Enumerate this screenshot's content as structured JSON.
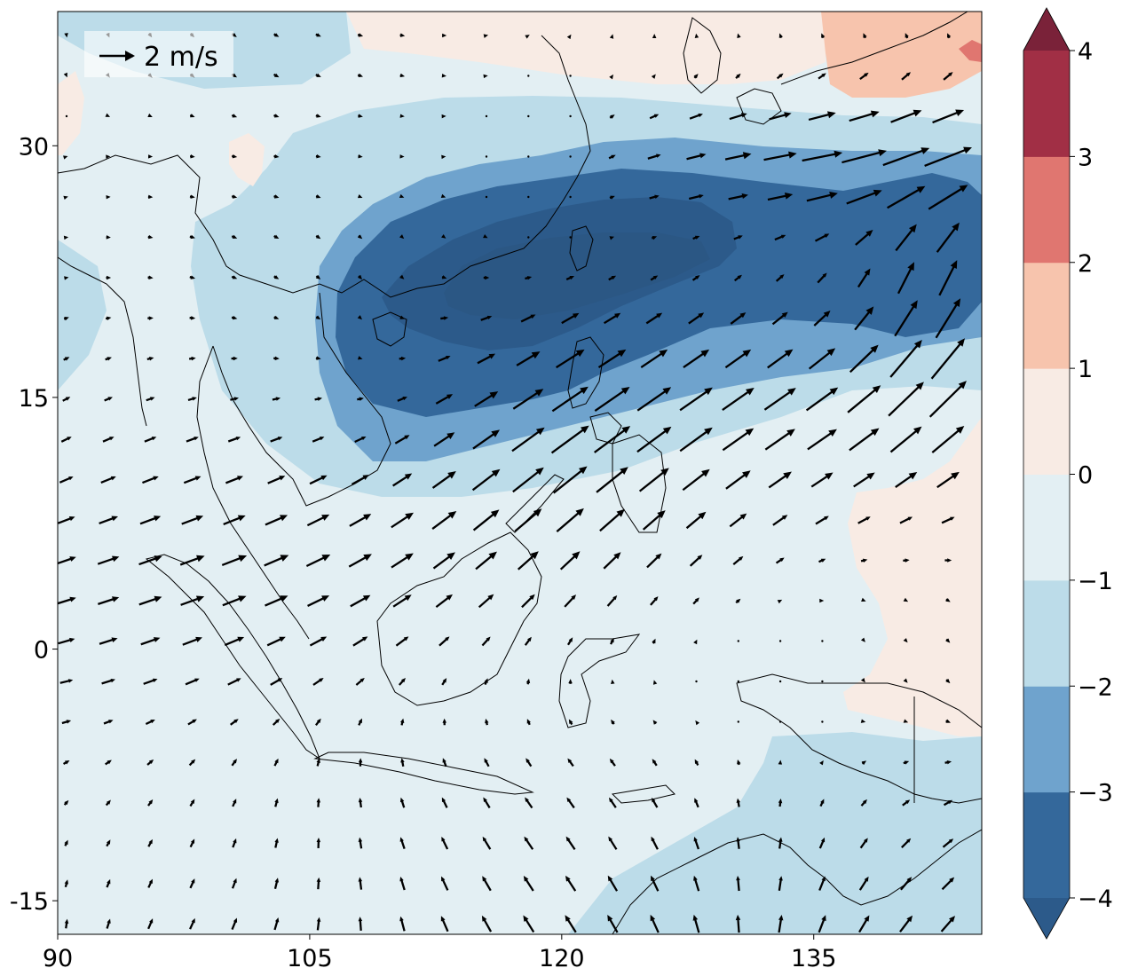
{
  "map": {
    "x_ticks": [
      "90",
      "105",
      "120",
      "135"
    ],
    "y_ticks": [
      "30",
      "15",
      "0",
      "-15"
    ],
    "x_tick_values": [
      90,
      105,
      120,
      135
    ],
    "y_tick_values": [
      30,
      15,
      0,
      -15
    ],
    "lon_range": [
      90,
      145
    ],
    "lat_range": [
      -17,
      38
    ]
  },
  "quiver_key": {
    "label": "2 m/s",
    "magnitude": 2
  },
  "colorbar": {
    "tick_labels": [
      "4",
      "3",
      "2",
      "1",
      "0",
      "−1",
      "−2",
      "−3",
      "−4"
    ],
    "levels": [
      -4,
      -3,
      -2,
      -1,
      0,
      1,
      2,
      3,
      4
    ],
    "colors": [
      "#2c5a8a",
      "#34689b",
      "#6fa3cd",
      "#bcdce9",
      "#e3eff3",
      "#f8ebe4",
      "#f7c4ad",
      "#e07670",
      "#a12f45",
      "#7a2239"
    ],
    "extend": "both"
  },
  "field_colors": {
    "neg4": "#2c5a8a",
    "neg3": "#34689b",
    "neg2": "#6fa3cd",
    "neg1": "#bcdce9",
    "zero": "#e3eff3",
    "pos0": "#f8ebe4",
    "pos1": "#f7c4ad",
    "pos2": "#e07670"
  }
}
